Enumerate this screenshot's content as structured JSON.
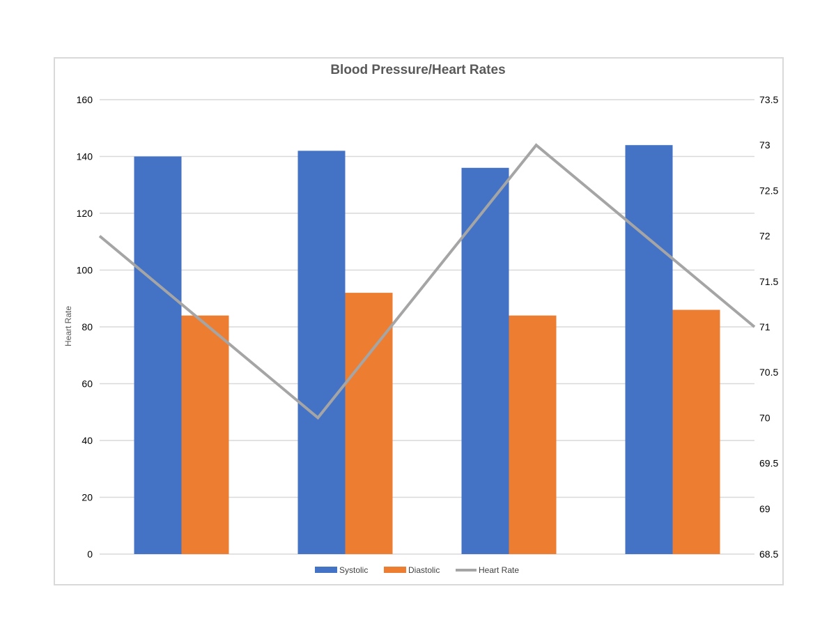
{
  "chart_data": {
    "type": "bar",
    "title": "Blood Pressure/Heart Rates",
    "ylabel": "Heart Rate",
    "categories": [
      "",
      "",
      "",
      ""
    ],
    "ylim": [
      0,
      160
    ],
    "y_ticks": [
      "0",
      "20",
      "40",
      "60",
      "80",
      "100",
      "120",
      "140",
      "160"
    ],
    "y2lim": [
      68.5,
      73.5
    ],
    "y2_ticks": [
      "68.5",
      "69",
      "69.5",
      "70",
      "70.5",
      "71",
      "71.5",
      "72",
      "72.5",
      "73",
      "73.5"
    ],
    "grid": true,
    "legend_position": "bottom",
    "series": [
      {
        "name": "Systolic",
        "type": "bar",
        "axis": "left",
        "color": "#4472C4",
        "values": [
          140,
          142,
          136,
          144
        ]
      },
      {
        "name": "Diastolic",
        "type": "bar",
        "axis": "left",
        "color": "#ED7D31",
        "values": [
          84,
          92,
          84,
          86
        ]
      },
      {
        "name": "Heart Rate",
        "type": "line",
        "axis": "right",
        "color": "#A5A5A5",
        "values": [
          72,
          70,
          73,
          71
        ]
      }
    ]
  }
}
